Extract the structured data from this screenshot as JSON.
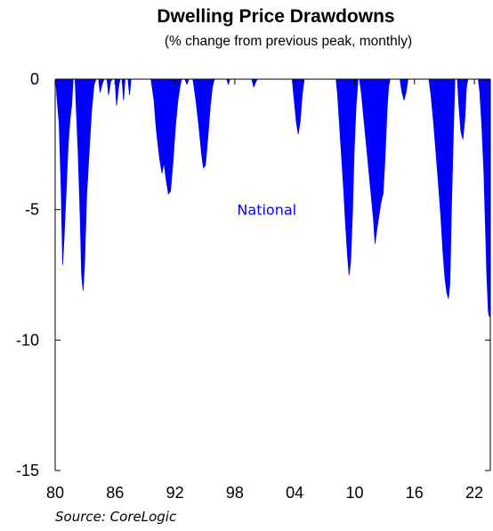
{
  "chart_data": {
    "type": "area",
    "title": "Dwelling Price Drawdowns",
    "subtitle": "(% change from previous peak, monthly)",
    "ylim": [
      -15,
      0
    ],
    "yticks": [
      0,
      -5,
      -10,
      -15
    ],
    "xlim": [
      1980,
      2023.6
    ],
    "xticks": [
      {
        "value": 1980,
        "label": "80"
      },
      {
        "value": 1986,
        "label": "86"
      },
      {
        "value": 1992,
        "label": "92"
      },
      {
        "value": 1998,
        "label": "98"
      },
      {
        "value": 2004,
        "label": "04"
      },
      {
        "value": 2010,
        "label": "10"
      },
      {
        "value": 2016,
        "label": "16"
      },
      {
        "value": 2022,
        "label": "22"
      }
    ],
    "series": [
      {
        "name": "National",
        "color": "#0000ff",
        "points": [
          [
            1980.05,
            0
          ],
          [
            1980.2,
            -0.8
          ],
          [
            1980.4,
            -1.7
          ],
          [
            1980.6,
            -4.2
          ],
          [
            1980.75,
            -7.1
          ],
          [
            1980.9,
            -6.0
          ],
          [
            1981.1,
            -4.3
          ],
          [
            1981.3,
            -2.5
          ],
          [
            1981.5,
            -1.5
          ],
          [
            1981.65,
            -1.0
          ],
          [
            1981.8,
            0
          ],
          [
            1982.0,
            0
          ],
          [
            1982.1,
            -1.0
          ],
          [
            1982.3,
            -2.8
          ],
          [
            1982.5,
            -5.2
          ],
          [
            1982.65,
            -7.5
          ],
          [
            1982.8,
            -8.1
          ],
          [
            1982.95,
            -7.0
          ],
          [
            1983.15,
            -4.5
          ],
          [
            1983.4,
            -2.8
          ],
          [
            1983.65,
            -1.2
          ],
          [
            1983.9,
            -0.2
          ],
          [
            1984.1,
            0
          ],
          [
            1984.35,
            0
          ],
          [
            1984.5,
            -0.5
          ],
          [
            1984.7,
            -0.2
          ],
          [
            1984.9,
            0
          ],
          [
            1985.2,
            0
          ],
          [
            1985.35,
            -0.6
          ],
          [
            1985.55,
            -0.1
          ],
          [
            1985.7,
            0
          ],
          [
            1986.0,
            0
          ],
          [
            1986.15,
            -1.0
          ],
          [
            1986.35,
            -0.3
          ],
          [
            1986.5,
            0
          ],
          [
            1986.7,
            0
          ],
          [
            1986.85,
            -0.8
          ],
          [
            1987.0,
            0
          ],
          [
            1987.3,
            0
          ],
          [
            1987.45,
            -0.6
          ],
          [
            1987.6,
            0
          ],
          [
            1989.6,
            0
          ],
          [
            1989.9,
            -0.8
          ],
          [
            1990.15,
            -2.0
          ],
          [
            1990.45,
            -3.0
          ],
          [
            1990.7,
            -3.6
          ],
          [
            1990.9,
            -3.2
          ],
          [
            1991.1,
            -3.8
          ],
          [
            1991.35,
            -4.4
          ],
          [
            1991.55,
            -4.3
          ],
          [
            1991.8,
            -3.2
          ],
          [
            1992.05,
            -1.8
          ],
          [
            1992.3,
            -0.8
          ],
          [
            1992.5,
            -0.3
          ],
          [
            1992.65,
            0
          ],
          [
            1993.0,
            0
          ],
          [
            1993.2,
            -0.2
          ],
          [
            1993.4,
            0
          ],
          [
            1993.8,
            0
          ],
          [
            1994.1,
            -0.8
          ],
          [
            1994.4,
            -1.8
          ],
          [
            1994.65,
            -2.8
          ],
          [
            1994.85,
            -3.4
          ],
          [
            1995.05,
            -3.3
          ],
          [
            1995.3,
            -2.2
          ],
          [
            1995.55,
            -1.0
          ],
          [
            1995.75,
            -0.3
          ],
          [
            1995.95,
            0
          ],
          [
            1997.2,
            0
          ],
          [
            1997.35,
            -0.2
          ],
          [
            1997.5,
            0
          ],
          [
            1999.7,
            0
          ],
          [
            1999.9,
            -0.3
          ],
          [
            2000.1,
            -0.1
          ],
          [
            2000.25,
            0
          ],
          [
            2003.75,
            0
          ],
          [
            2003.95,
            -0.8
          ],
          [
            2004.15,
            -1.6
          ],
          [
            2004.35,
            -2.1
          ],
          [
            2004.55,
            -1.6
          ],
          [
            2004.75,
            -0.6
          ],
          [
            2004.95,
            0
          ],
          [
            2008.15,
            0
          ],
          [
            2008.3,
            -0.6
          ],
          [
            2008.5,
            -1.8
          ],
          [
            2008.7,
            -3.0
          ],
          [
            2008.9,
            -4.2
          ],
          [
            2009.1,
            -5.6
          ],
          [
            2009.3,
            -6.8
          ],
          [
            2009.45,
            -7.5
          ],
          [
            2009.6,
            -7.0
          ],
          [
            2009.8,
            -5.0
          ],
          [
            2009.95,
            -2.8
          ],
          [
            2010.15,
            -1.0
          ],
          [
            2010.35,
            0
          ],
          [
            2010.5,
            0
          ],
          [
            2010.7,
            -0.6
          ],
          [
            2010.95,
            -1.6
          ],
          [
            2011.2,
            -2.6
          ],
          [
            2011.45,
            -3.6
          ],
          [
            2011.7,
            -4.6
          ],
          [
            2011.9,
            -5.4
          ],
          [
            2012.05,
            -6.3
          ],
          [
            2012.25,
            -5.7
          ],
          [
            2012.45,
            -5.2
          ],
          [
            2012.65,
            -4.7
          ],
          [
            2012.85,
            -4.4
          ],
          [
            2013.05,
            -3.0
          ],
          [
            2013.25,
            -1.2
          ],
          [
            2013.4,
            -0.3
          ],
          [
            2013.55,
            0
          ],
          [
            2014.55,
            0
          ],
          [
            2014.75,
            -0.5
          ],
          [
            2014.95,
            -0.8
          ],
          [
            2015.15,
            -0.5
          ],
          [
            2015.35,
            0
          ],
          [
            2017.45,
            0
          ],
          [
            2017.65,
            -0.6
          ],
          [
            2017.9,
            -1.6
          ],
          [
            2018.15,
            -2.8
          ],
          [
            2018.4,
            -4.0
          ],
          [
            2018.65,
            -5.3
          ],
          [
            2018.85,
            -6.6
          ],
          [
            2019.05,
            -7.6
          ],
          [
            2019.25,
            -8.2
          ],
          [
            2019.4,
            -8.4
          ],
          [
            2019.55,
            -7.8
          ],
          [
            2019.7,
            -5.0
          ],
          [
            2019.9,
            -2.0
          ],
          [
            2020.05,
            0
          ],
          [
            2020.3,
            0
          ],
          [
            2020.45,
            -1.0
          ],
          [
            2020.65,
            -2.0
          ],
          [
            2020.85,
            -2.3
          ],
          [
            2021.05,
            -1.5
          ],
          [
            2021.2,
            -0.3
          ],
          [
            2021.35,
            0
          ],
          [
            2022.4,
            0
          ],
          [
            2022.55,
            -0.5
          ],
          [
            2022.75,
            -1.8
          ],
          [
            2022.95,
            -3.5
          ],
          [
            2023.1,
            -5.5
          ],
          [
            2023.25,
            -7.5
          ],
          [
            2023.4,
            -8.9
          ],
          [
            2023.5,
            -9.1
          ],
          [
            2023.58,
            -8.8
          ],
          [
            2023.6,
            0
          ]
        ]
      }
    ],
    "annotations": [
      {
        "text": "National",
        "x": 2001.2,
        "y": -5.2,
        "color": "#0000ff"
      }
    ],
    "source": "Source: CoreLogic"
  }
}
